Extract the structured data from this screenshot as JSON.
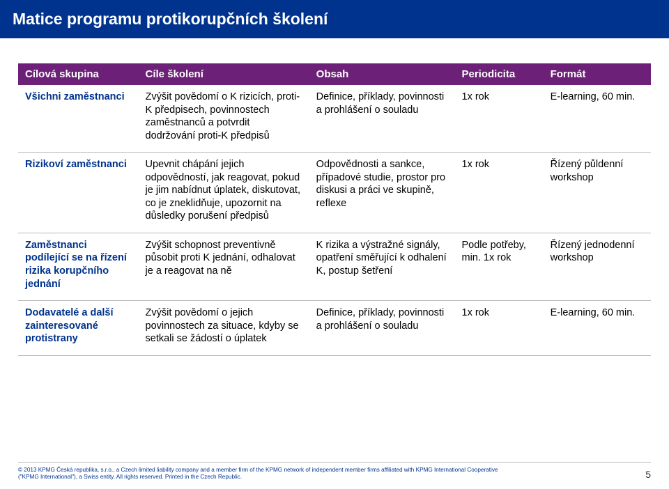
{
  "title": "Matice programu protikorupčních školení",
  "table": {
    "header_bg": "#6d2077",
    "row_border": "#b8b8b8",
    "col1_text_color": "#00338d",
    "columns": [
      "Cílová skupina",
      "Cíle školení",
      "Obsah",
      "Periodicita",
      "Formát"
    ],
    "rows": [
      {
        "group": "Všichni zaměstnanci",
        "goal": "Zvýšit povědomí o K rizicích, proti-K předpisech, povinnostech zaměstnanců a potvrdit dodržování proti-K předpisů",
        "content": "Definice, příklady, povinnosti a prohlášení o souladu",
        "period": "1x rok",
        "format": "E-learning, 60 min."
      },
      {
        "group": "Rizikoví zaměstnanci",
        "goal": "Upevnit chápání jejich odpovědností, jak reagovat, pokud je jim nabídnut úplatek, diskutovat, co je zneklidňuje, upozornit na důsledky porušení předpisů",
        "content": "Odpovědnosti a sankce, případové studie, prostor pro diskusi a práci ve skupině, reflexe",
        "period": "1x rok",
        "format": "Řízený půldenní workshop"
      },
      {
        "group": "Zaměstnanci podílející se na řízení rizika korupčního jednání",
        "goal": "Zvýšit schopnost preventivně působit proti K jednání, odhalovat je a reagovat na ně",
        "content": "K rizika a výstražné signály, opatření směřující k odhalení K, postup šetření",
        "period": "Podle potřeby, min. 1x rok",
        "format": "Řízený jednodenní workshop"
      },
      {
        "group": "Dodavatelé a další zainteresované protistrany",
        "goal": "Zvýšit povědomí o jejich povinnostech za situace, kdyby se setkali se žádostí o úplatek",
        "content": "Definice, příklady, povinnosti a prohlášení o souladu",
        "period": "1x rok",
        "format": "E-learning, 60 min."
      }
    ]
  },
  "footer": {
    "copyright": "© 2013 KPMG Česká republika, s.r.o., a Czech limited liability company and a member firm of the KPMG network of independent member firms affiliated with KPMG International Cooperative (\"KPMG International\"), a Swiss entity. All rights reserved. Printed in the Czech Republic.",
    "page_number": "5"
  }
}
